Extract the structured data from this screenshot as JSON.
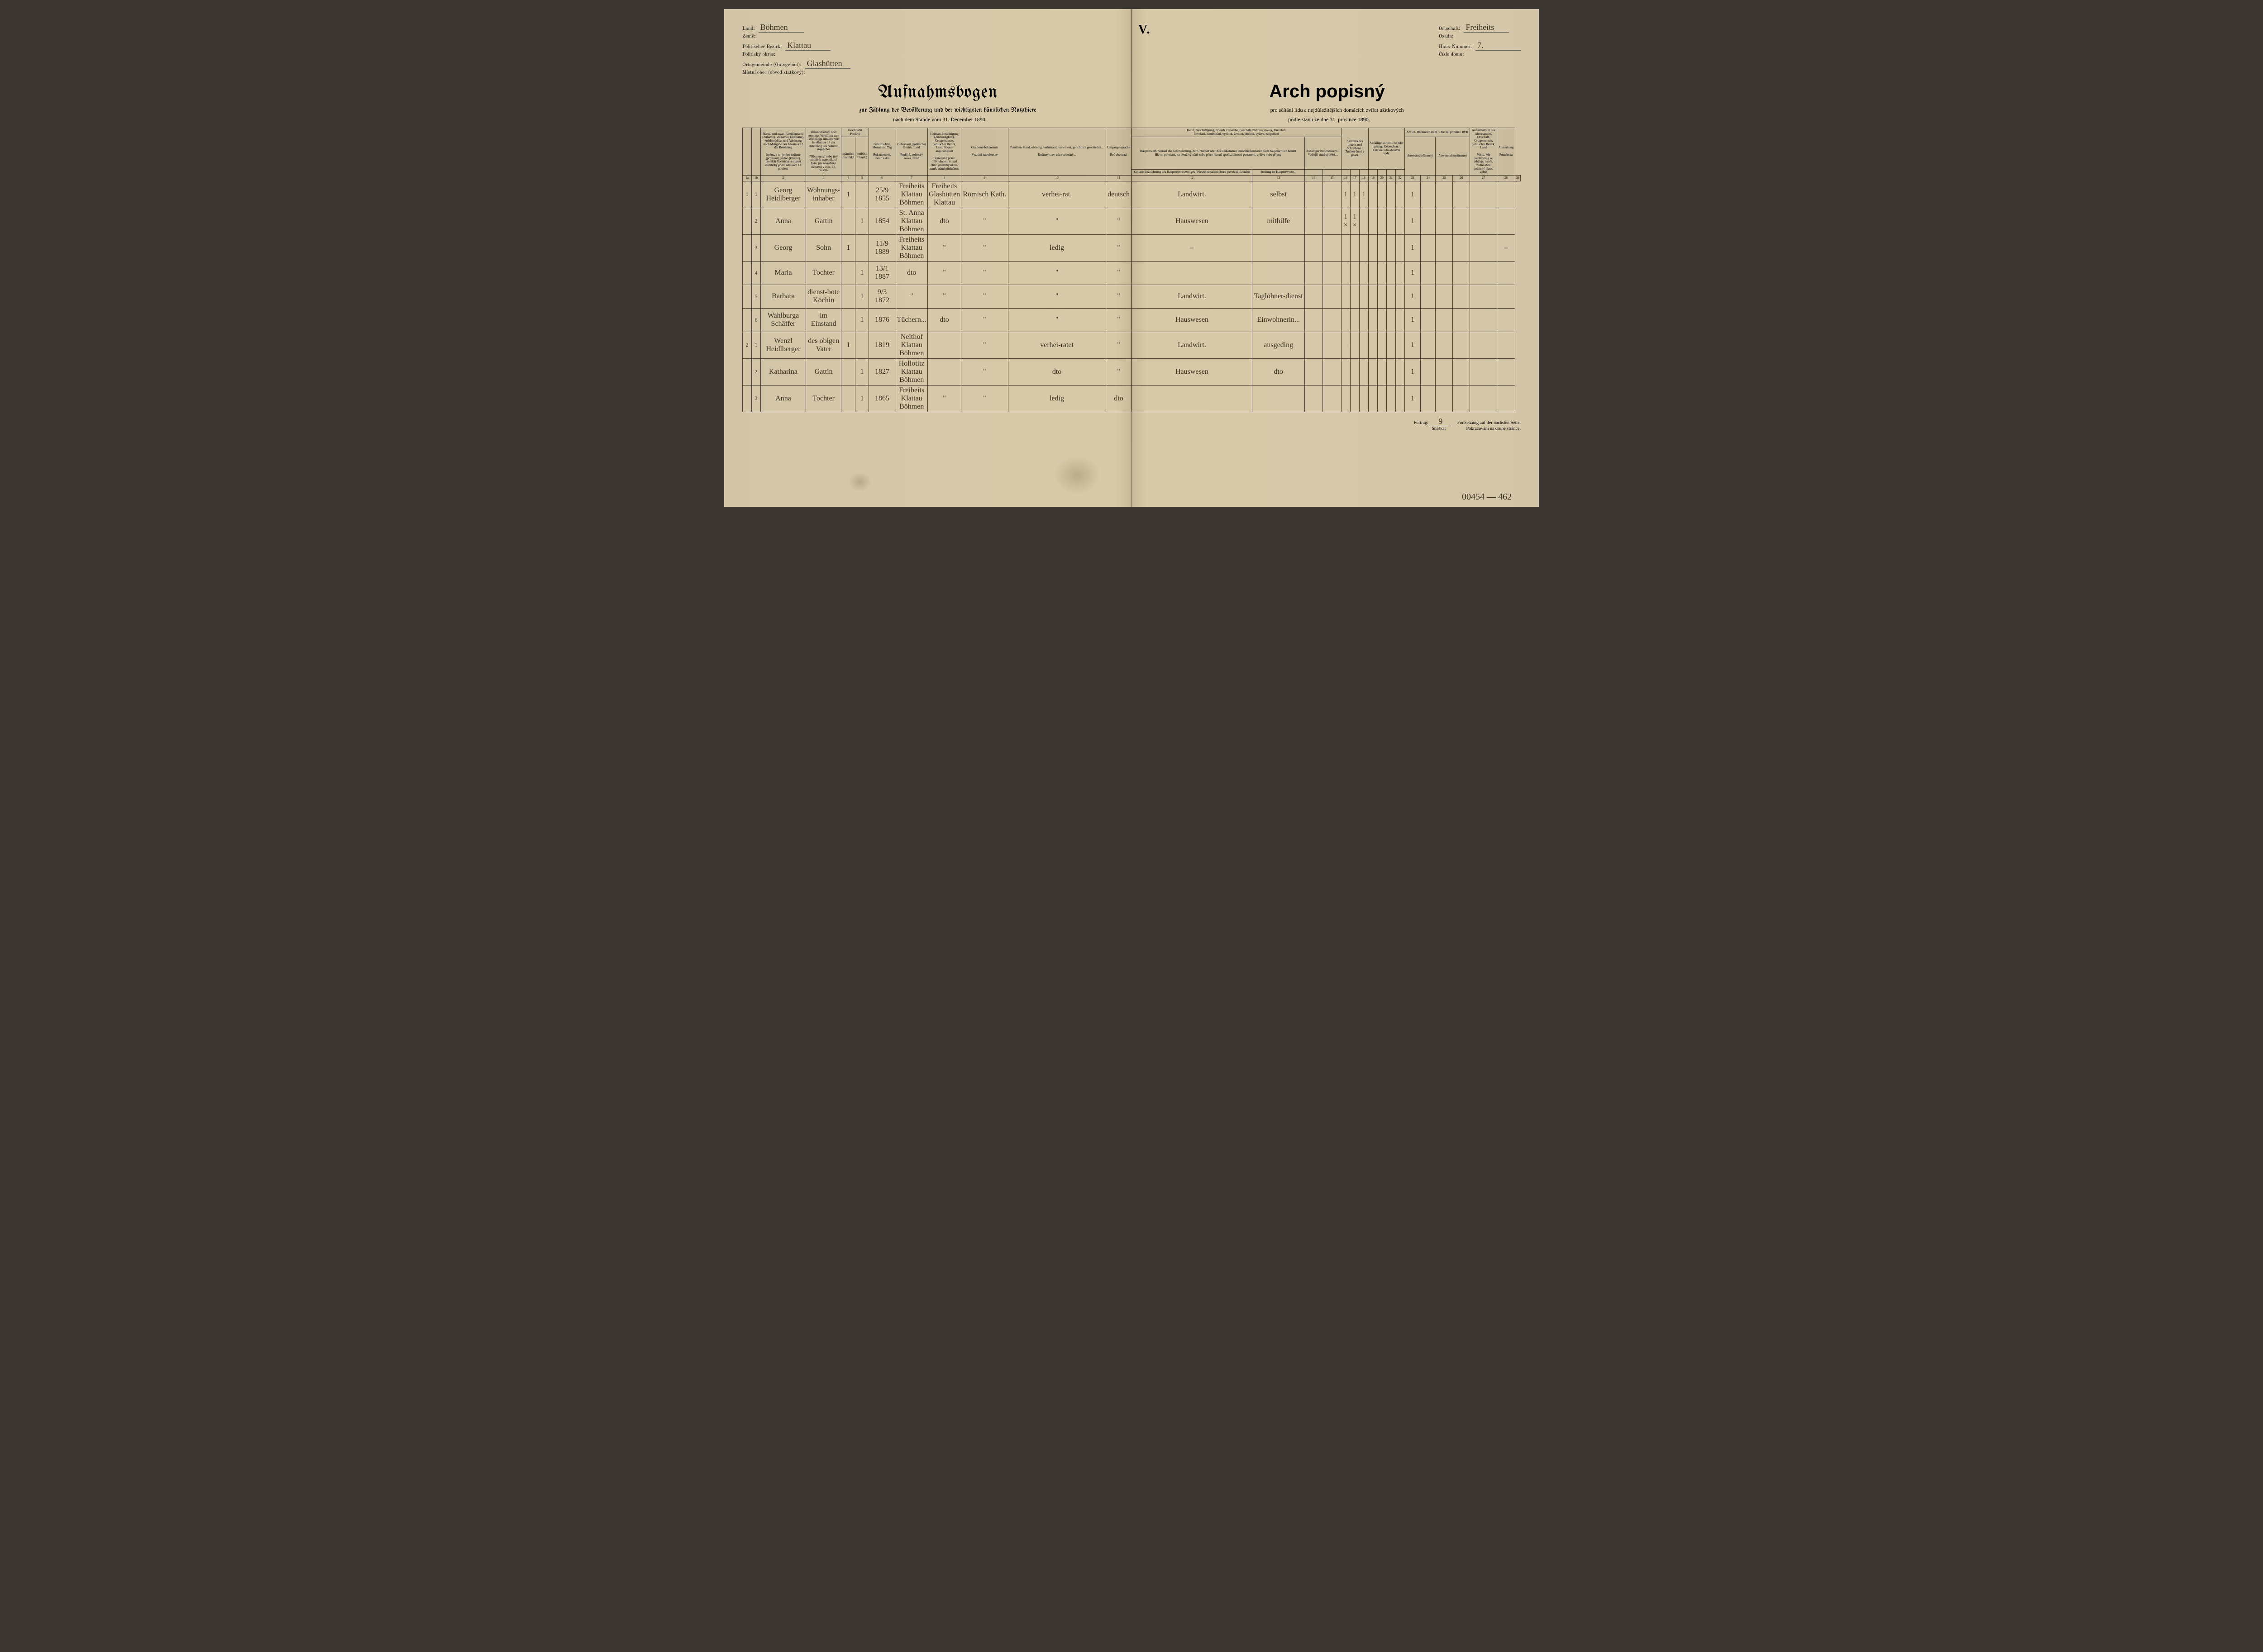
{
  "header": {
    "land_label_de": "Land:",
    "land_label_cz": "Země:",
    "land_value": "Böhmen",
    "bezirk_label_de": "Politischer Bezirk:",
    "bezirk_label_cz": "Politický okres:",
    "bezirk_value": "Klattau",
    "gemeinde_label_de": "Ortsgemeinde (Gutsgebiet):",
    "gemeinde_label_cz": "Místní obec (obvod statkový):",
    "gemeinde_value": "Glashütten",
    "ort_label_de": "Ortschaft:",
    "ort_label_cz": "Osada:",
    "ort_value": "Freiheits",
    "hausnr_label_de": "Haus-Nummer:",
    "hausnr_label_cz": "Číslo domu:",
    "hausnr_value": "7.",
    "roman": "V.",
    "title_de": "Aufnahmsbogen",
    "title_cz": "Arch popisný",
    "subtitle_de": "zur Zählung der Bevölkerung und der wichtigsten häuslichen Nutzthiere",
    "subtitle_cz": "pro sčítání lidu a nejdůležitějších domácích zvířat užitkových",
    "date_de": "nach dem Stande vom 31. December 1890.",
    "date_cz": "podle stavu ze dne 31. prosince 1890."
  },
  "columns": {
    "c1": "1a",
    "c1b": "1b",
    "c2_de": "Name, und zwar: Familienname (Zuname), Vorname (Taufname), Adelsprädicat und Adelsrang nach Maßgabe des Absatzes 12 der Belehrung",
    "c2_cz": "Jméno, a to: jméno rodinné (příjmení), jméno (křestní), predikát šlechtický a stupeň šlechtický podle odstavce 12. poučení",
    "c3_de": "Verwandtschaft oder sonstiges Verhältnis zum Wohnungs-inhaber, wie im Absatze 13 der Belehrung des Näheren angegeben",
    "c3_cz": "Příbuzenství nebo jiný poměr k majetníkovi bytu, jak zevrubněji uvedeno v odst. 13. poučení",
    "c4_de": "Geschlecht",
    "c4_cz": "Pohlaví",
    "c4a": "männlich / mužské",
    "c4b": "weiblich / ženské",
    "c5_de": "Geburts-Jahr, Monat und Tag",
    "c5_cz": "Rok narození, měsíc a den",
    "c6_de": "Geburtsort, politischer Bezirk, Land",
    "c6_cz": "Rodiště, politický okres, země",
    "c7_de": "Heimats-berechtigung (Zuständigkeit), Ortsgemeinde, politischer Bezirk, Land, Staats-angehörigkeit",
    "c7_cz": "Domovské právo (příslušnost), místní obec, politický okres, země, státní příslušnost",
    "c8_de": "Glaubens-bekenntnis",
    "c8_cz": "Vyznání náboženské",
    "c9_de": "Familien-Stand, ob ledig, verheiratet, verwitwet, gerichtlich geschieden...",
    "c9_cz": "Rodinný stav, zda svobodný...",
    "c10_de": "Umgangs-sprache",
    "c10_cz": "Řeč obcovací",
    "c11_de": "Beruf, Beschäftigung, Erwerb, Gewerbe, Geschäft, Nahrungszweig, Unterhalt",
    "c11_cz": "Povolání, zaměstnání, výdělek, živnost, obchod, výživa, zaopatření",
    "c11a_de": "Haupterwerb, worauf die Lebenssitzung, der Unterhalt oder das Einkommen ausschließend oder doch hauptsächlich beruht",
    "c11a_cz": "Hlavní povolání, na němž výlučně nebo přece hlavně spočívá životní postavení, výživa nebo příjmy",
    "c11b_de": "Genaue Bezeichnung des Haupterwerbszweiges / Přesné označení oboru povolání hlavního",
    "c11c_de": "Stellung im Haupterwerbe...",
    "c11d_de": "Allfälliger Nebenerwerb...",
    "c11d_cz": "Vedlejší snad výdělek...",
    "c16_de": "Kenntnis des Lesens und Schreibens / Znalost čtení a psaní",
    "c17_de": "Allfällige körperliche oder geistige Gebrechen / Tělesné nebo duševní vady",
    "c18_de": "Am 31. December 1890 / Dne 31. prosince 1890",
    "c18a": "Anwesend přítomný",
    "c18b": "Abwesend nepřítomný",
    "c19_de": "Aufenthaltsort des Abwesenden, Ortschaft, Ortsgemeinde, politischer Bezirk, Land",
    "c19_cz": "Místo, kde nepřítomný se zdržuje, osada, místní obec, politický okres, země",
    "c20_de": "Anmerkung",
    "c20_cz": "Poznámka"
  },
  "rows": [
    {
      "a": "1",
      "b": "1",
      "name": "Georg Heidlberger",
      "rel": "Wohnungs-inhaber",
      "m": "1",
      "f": "",
      "birth": "25/9 1855",
      "place": "Freiheits Klattau Böhmen",
      "heimat": "Freiheits Glashütten Klattau",
      "relig": "Römisch Kath.",
      "stand": "verhei-rat.",
      "sprache": "deutsch",
      "beruf": "Landwirt.",
      "stellung": "selbst",
      "neben": "",
      "lesen": "1",
      "schr": "1",
      "les2": "1",
      "anw": "1",
      "abw": "",
      "ort": "",
      "anm": ""
    },
    {
      "a": "",
      "b": "2",
      "name": "Anna",
      "rel": "Gattin",
      "m": "",
      "f": "1",
      "birth": "1854",
      "place": "St. Anna Klattau Böhmen",
      "heimat": "dto",
      "relig": "\"",
      "stand": "\"",
      "sprache": "\"",
      "beruf": "Hauswesen",
      "stellung": "mithilfe",
      "neben": "",
      "lesen": "1 ×",
      "schr": "1 ×",
      "les2": "",
      "anw": "1",
      "abw": "",
      "ort": "",
      "anm": ""
    },
    {
      "a": "",
      "b": "3",
      "name": "Georg",
      "rel": "Sohn",
      "m": "1",
      "f": "",
      "birth": "11/9 1889",
      "place": "Freiheits Klattau Böhmen",
      "heimat": "\"",
      "relig": "\"",
      "stand": "ledig",
      "sprache": "\"",
      "beruf": "–",
      "stellung": "",
      "neben": "",
      "lesen": "",
      "schr": "",
      "les2": "",
      "anw": "1",
      "abw": "",
      "ort": "",
      "anm": "–"
    },
    {
      "a": "",
      "b": "4",
      "name": "Maria",
      "rel": "Tochter",
      "m": "",
      "f": "1",
      "birth": "13/1 1887",
      "place": "dto",
      "heimat": "\"",
      "relig": "\"",
      "stand": "\"",
      "sprache": "\"",
      "beruf": "",
      "stellung": "",
      "neben": "",
      "lesen": "",
      "schr": "",
      "les2": "",
      "anw": "1",
      "abw": "",
      "ort": "",
      "anm": ""
    },
    {
      "a": "",
      "b": "5",
      "name": "Barbara",
      "rel": "dienst-bote Köchin",
      "m": "",
      "f": "1",
      "birth": "9/3 1872",
      "place": "\"",
      "heimat": "\"",
      "relig": "\"",
      "stand": "\"",
      "sprache": "\"",
      "beruf": "Landwirt.",
      "stellung": "Taglöhner-dienst",
      "neben": "",
      "lesen": "",
      "schr": "",
      "les2": "",
      "anw": "1",
      "abw": "",
      "ort": "",
      "anm": ""
    },
    {
      "a": "",
      "b": "6",
      "name": "Wahlburga Schäffer",
      "rel": "im Einstand",
      "m": "",
      "f": "1",
      "birth": "1876",
      "place": "Tüchern...",
      "heimat": "dto",
      "relig": "\"",
      "stand": "\"",
      "sprache": "\"",
      "beruf": "Hauswesen",
      "stellung": "Einwohnerin...",
      "neben": "",
      "lesen": "",
      "schr": "",
      "les2": "",
      "anw": "1",
      "abw": "",
      "ort": "",
      "anm": ""
    },
    {
      "a": "2",
      "b": "1",
      "name": "Wenzl Heidlberger",
      "rel": "des obigen Vater",
      "m": "1",
      "f": "",
      "birth": "1819",
      "place": "Neithof Klattau Böhmen",
      "heimat": "",
      "relig": "\"",
      "stand": "verhei-ratet",
      "sprache": "\"",
      "beruf": "Landwirt.",
      "stellung": "ausgeding",
      "neben": "",
      "lesen": "",
      "schr": "",
      "les2": "",
      "anw": "1",
      "abw": "",
      "ort": "",
      "anm": ""
    },
    {
      "a": "",
      "b": "2",
      "name": "Katharina",
      "rel": "Gattin",
      "m": "",
      "f": "1",
      "birth": "1827",
      "place": "Hollotitz Klattau Böhmen",
      "heimat": "",
      "relig": "\"",
      "stand": "dto",
      "sprache": "\"",
      "beruf": "Hauswesen",
      "stellung": "dto",
      "neben": "",
      "lesen": "",
      "schr": "",
      "les2": "",
      "anw": "1",
      "abw": "",
      "ort": "",
      "anm": ""
    },
    {
      "a": "",
      "b": "3",
      "name": "Anna",
      "rel": "Tochter",
      "m": "",
      "f": "1",
      "birth": "1865",
      "place": "Freiheits Klattau Böhmen",
      "heimat": "\"",
      "relig": "\"",
      "stand": "ledig",
      "sprache": "dto",
      "beruf": "",
      "stellung": "",
      "neben": "",
      "lesen": "",
      "schr": "",
      "les2": "",
      "anw": "1",
      "abw": "",
      "ort": "",
      "anm": ""
    }
  ],
  "footer": {
    "furtrag_label": "Fürtrag:",
    "snaska_label": "Snáška:",
    "furtrag_value": "9",
    "cont_de": "Fortsetzung auf der nächsten Seite.",
    "cont_cz": "Pokračování na druhé stránce.",
    "pagenum": "00454 — 462"
  }
}
